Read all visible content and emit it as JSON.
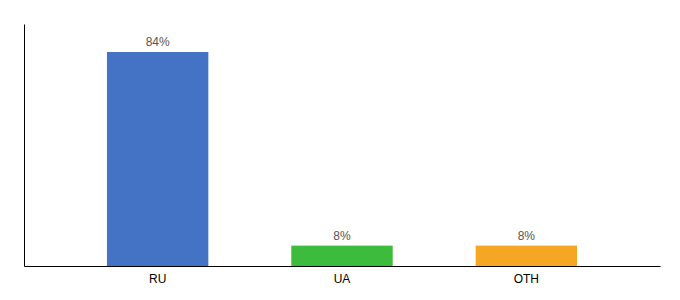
{
  "chart_data": {
    "type": "bar",
    "categories": [
      "RU",
      "UA",
      "OTH"
    ],
    "values": [
      84,
      8,
      8
    ],
    "value_labels": [
      "84%",
      "8%",
      "8%"
    ],
    "colors": [
      "#4472c4",
      "#3dbb3d",
      "#f5a623"
    ],
    "ylim": [
      0,
      95
    ],
    "data_labels": true,
    "grid": false,
    "tick_labels": "x"
  }
}
